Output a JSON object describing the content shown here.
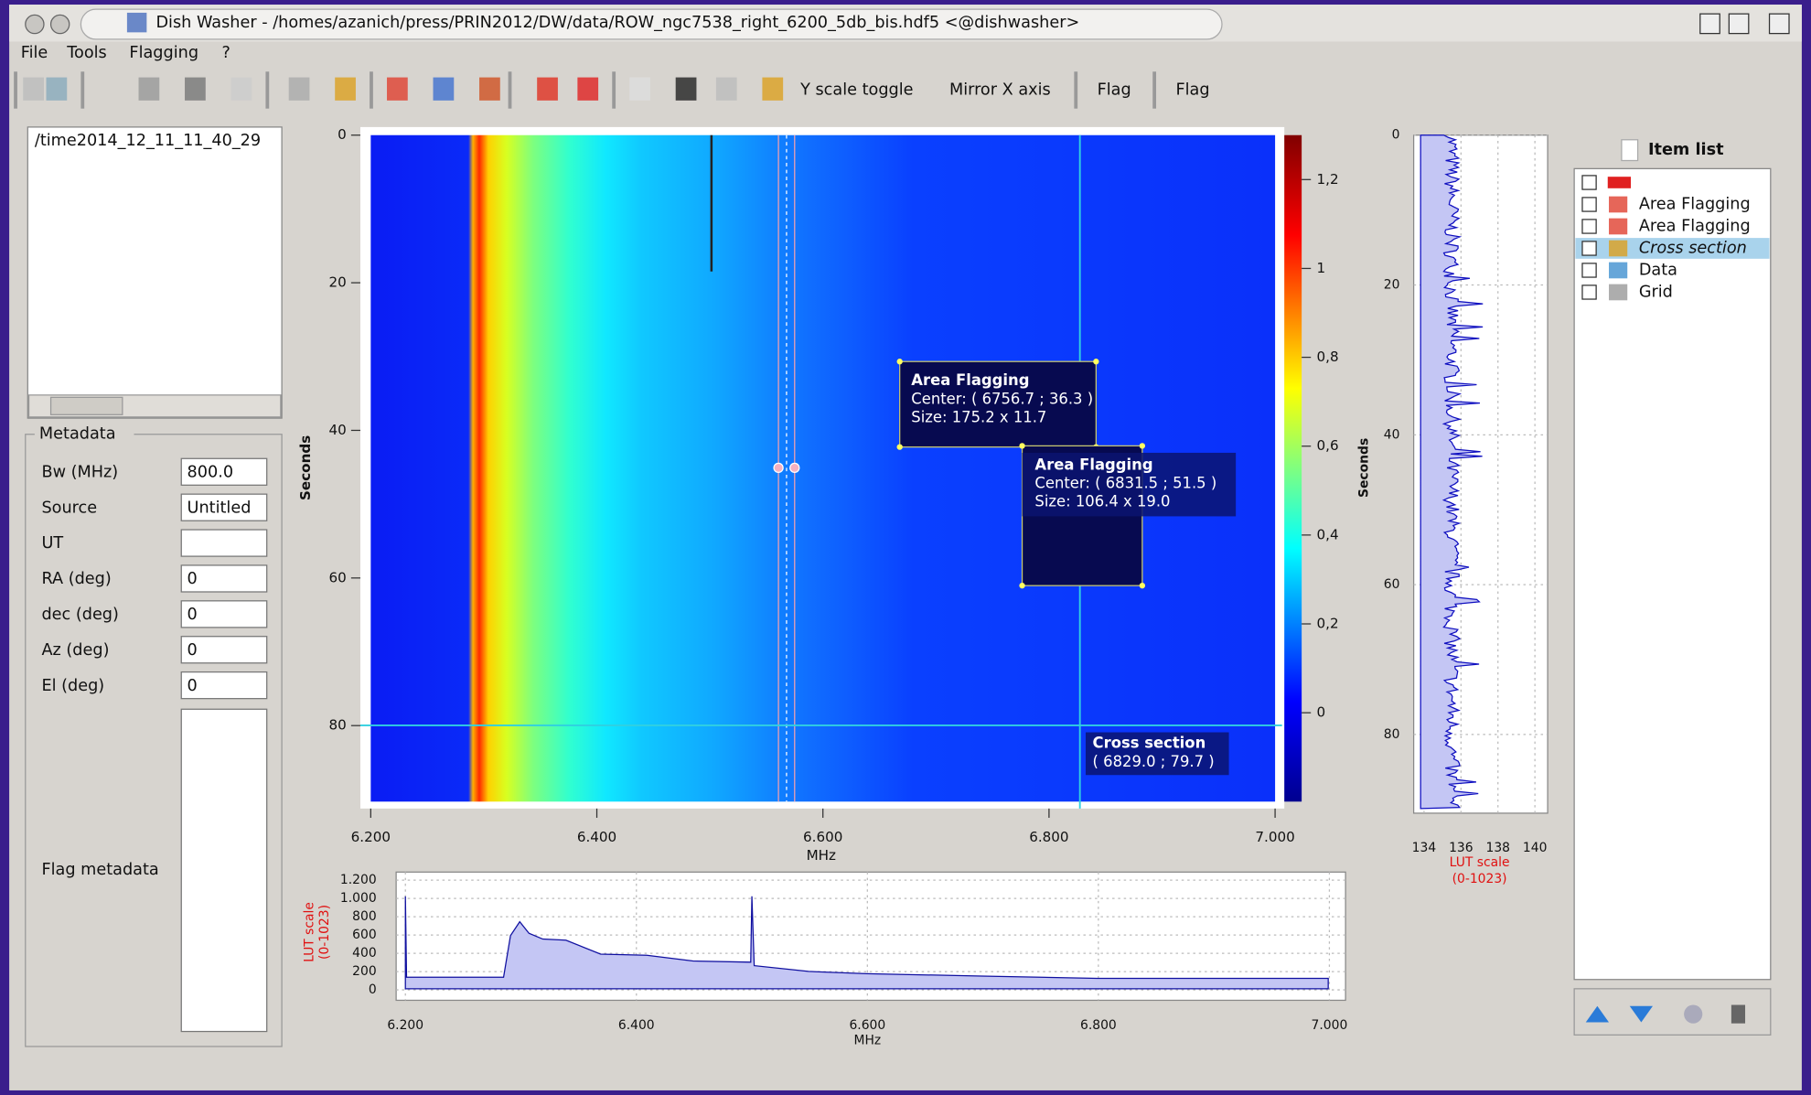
{
  "window": {
    "title": "Dish Washer - /homes/azanich/press/PRIN2012/DW/data/ROW_ngc7538_right_6200_5db_bis.hdf5 <@dishwasher>"
  },
  "menu": [
    "File",
    "Tools",
    "Flagging",
    "?"
  ],
  "toolbar": [
    "Y scale toggle",
    "Mirror X axis",
    "Flag",
    "Flag"
  ],
  "file_list": [
    "/time2014_12_11_11_40_29"
  ],
  "metadata": {
    "title": "Metadata",
    "fields": [
      {
        "label": "Bw (MHz)",
        "value": "800.0"
      },
      {
        "label": "Source",
        "value": "Untitled"
      },
      {
        "label": "UT"
      },
      {
        "label": "RA (deg)",
        "value": "0"
      },
      {
        "label": "dec (deg)",
        "value": "0"
      },
      {
        "label": "Az (deg)",
        "value": "0"
      },
      {
        "label": "El (deg)",
        "value": "0"
      }
    ],
    "flag_label": "Flag metadata"
  },
  "spectrogram": {
    "xlabel": "MHz",
    "ylabel": "Seconds",
    "xlim": [
      6200,
      7000
    ],
    "ylim": [
      0,
      90.3
    ],
    "xticks": [
      {
        "value": 6200,
        "label": "6.200"
      },
      {
        "value": 6400,
        "label": "6.400"
      },
      {
        "value": 6600,
        "label": "6.600"
      },
      {
        "value": 6800,
        "label": "6.800"
      },
      {
        "value": 7000,
        "label": "7.000"
      }
    ],
    "yticks": [
      0,
      20,
      40,
      60,
      80
    ],
    "colorbar": {
      "lim": [
        -0.2,
        1.3
      ],
      "ticks": [
        {
          "value": 1.2,
          "label": "1,2"
        },
        1,
        {
          "value": 0.8,
          "label": "0,8"
        },
        {
          "value": 0.6,
          "label": "0,6"
        },
        {
          "value": 0.4,
          "label": "0,4"
        },
        {
          "value": 0.2,
          "label": "0,2"
        },
        0
      ]
    },
    "annotations": [
      {
        "title": "Area Flagging",
        "center": "Center: ( 6756.7 ; 36.3 )",
        "size": "Size: 175.2 x 11.7"
      },
      {
        "title": "Area Flagging",
        "center": "Center: ( 6831.5 ; 51.5 )",
        "size": "Size: 106.4 x 19.0"
      },
      {
        "title": "Cross section",
        "position": "( 6829.0 ; 79.7 )"
      }
    ]
  },
  "time_profile": {
    "ylabel": "Seconds",
    "xlabel": [
      "LUT scale",
      "(0-1023)"
    ],
    "xlim": [
      133.44,
      140.69
    ],
    "ylim": [
      0,
      90.5
    ],
    "xticks": [
      134,
      136,
      138,
      140
    ],
    "yticks": [
      0,
      20,
      40,
      60,
      80
    ]
  },
  "spectrum": {
    "xlabel": "MHz",
    "ylabel": [
      "LUT scale",
      "(0-1023)"
    ],
    "xlim": [
      6192,
      7014
    ],
    "ylim": [
      -114,
      1288
    ],
    "xticks": [
      {
        "value": 6200,
        "label": "6.200"
      },
      {
        "value": 6400,
        "label": "6.400"
      },
      {
        "value": 6600,
        "label": "6.600"
      },
      {
        "value": 6800,
        "label": "6.800"
      },
      {
        "value": 7000,
        "label": "7.000"
      }
    ],
    "yticks": [
      {
        "value": 1200,
        "label": "1.200"
      },
      {
        "value": 1000,
        "label": "1.000"
      },
      800,
      600,
      400,
      200,
      0
    ]
  },
  "item_list": {
    "title": "Item list",
    "items": [
      "Area Flagging",
      "Area Flagging",
      "Cross section",
      "Data",
      "Grid"
    ]
  }
}
